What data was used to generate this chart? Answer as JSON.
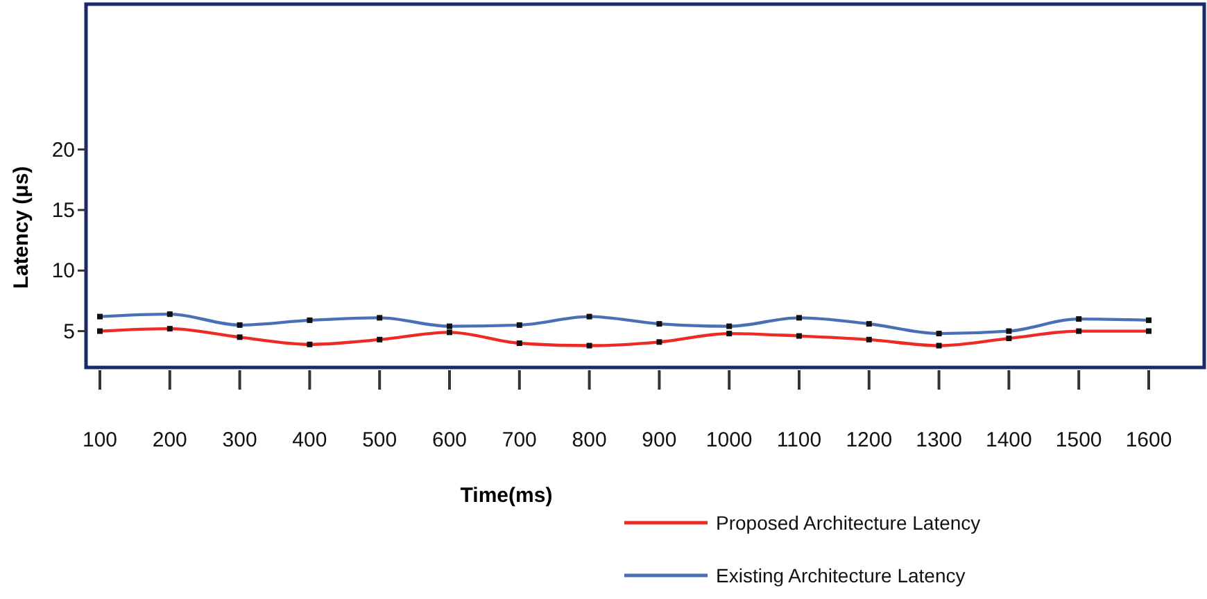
{
  "chart_data": {
    "type": "line",
    "xlabel": "Time(ms)",
    "ylabel": "Latency (μs)",
    "categories": [
      "100",
      "200",
      "300",
      "400",
      "500",
      "600",
      "700",
      "800",
      "900",
      "1000",
      "1100",
      "1200",
      "1300",
      "1400",
      "1500",
      "1600"
    ],
    "series": [
      {
        "name": "Proposed Architecture Latency",
        "color": "#ee2a24",
        "values": [
          5.0,
          5.2,
          4.5,
          3.9,
          4.3,
          4.9,
          4.0,
          3.8,
          4.1,
          4.8,
          4.6,
          4.3,
          3.8,
          4.4,
          5.0,
          5.0
        ]
      },
      {
        "name": "Existing Architecture Latency",
        "color": "#4a6fb5",
        "values": [
          6.2,
          6.4,
          5.5,
          5.9,
          6.1,
          5.4,
          5.5,
          6.2,
          5.6,
          5.4,
          6.1,
          5.6,
          4.8,
          5.0,
          6.0,
          5.9
        ]
      }
    ],
    "ylim": [
      2,
      32
    ],
    "yticks": [
      5,
      10,
      15,
      20
    ],
    "grid": false,
    "legend": "bottom right",
    "marker": "square",
    "line_style": "solid"
  }
}
